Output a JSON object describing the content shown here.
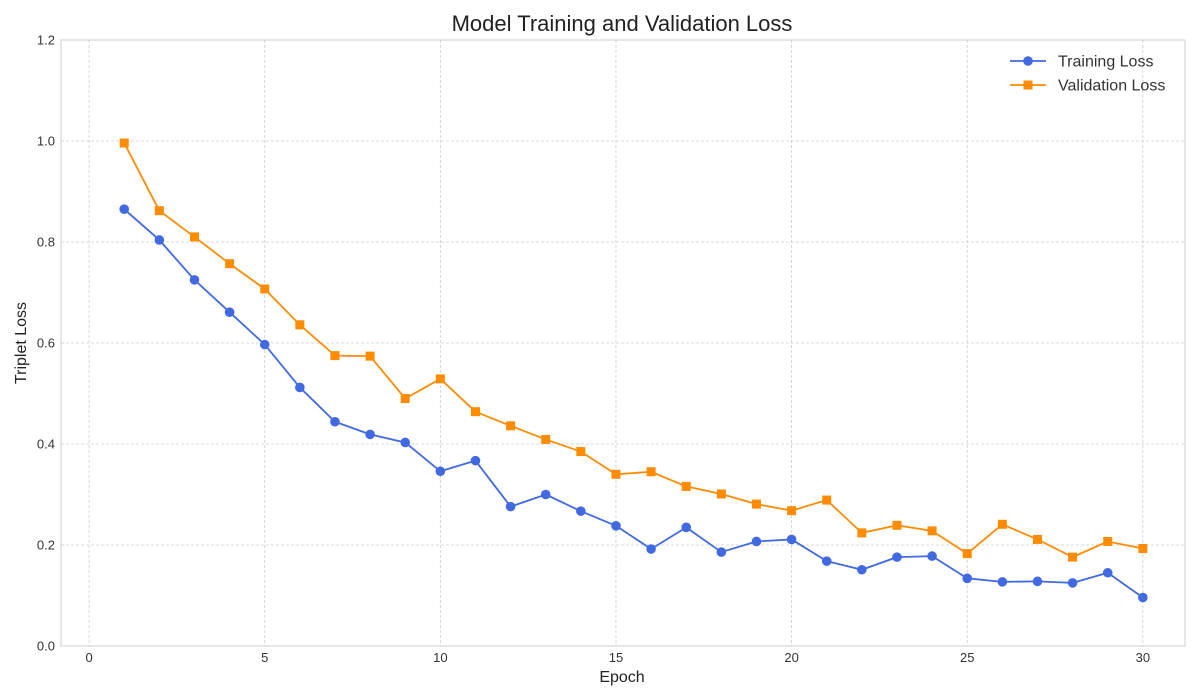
{
  "chart_data": {
    "type": "line",
    "title": "Model Training and Validation Loss",
    "xlabel": "Epoch",
    "ylabel": "Triplet Loss",
    "xlim": [
      -0.8,
      31.2
    ],
    "ylim": [
      0.0,
      1.2
    ],
    "xticks": [
      0,
      5,
      10,
      15,
      20,
      25,
      30
    ],
    "yticks": [
      0.0,
      0.2,
      0.4,
      0.6,
      0.8,
      1.0,
      1.2
    ],
    "grid": true,
    "legend_position": "top-right",
    "x": [
      1,
      2,
      3,
      4,
      5,
      6,
      7,
      8,
      9,
      10,
      11,
      12,
      13,
      14,
      15,
      16,
      17,
      18,
      19,
      20,
      21,
      22,
      23,
      24,
      25,
      26,
      27,
      28,
      29,
      30
    ],
    "series": [
      {
        "name": "Training Loss",
        "color": "#4169e1",
        "marker": "circle",
        "values": [
          0.865,
          0.804,
          0.725,
          0.661,
          0.597,
          0.512,
          0.444,
          0.419,
          0.403,
          0.346,
          0.367,
          0.276,
          0.3,
          0.267,
          0.238,
          0.192,
          0.235,
          0.186,
          0.207,
          0.211,
          0.168,
          0.151,
          0.176,
          0.178,
          0.134,
          0.127,
          0.128,
          0.125,
          0.145,
          0.096
        ]
      },
      {
        "name": "Validation Loss",
        "color": "#ff8c00",
        "marker": "square",
        "values": [
          0.996,
          0.862,
          0.81,
          0.757,
          0.707,
          0.636,
          0.575,
          0.574,
          0.49,
          0.529,
          0.464,
          0.436,
          0.409,
          0.385,
          0.34,
          0.345,
          0.316,
          0.301,
          0.281,
          0.268,
          0.289,
          0.224,
          0.239,
          0.228,
          0.183,
          0.241,
          0.211,
          0.176,
          0.207,
          0.193
        ]
      }
    ]
  }
}
